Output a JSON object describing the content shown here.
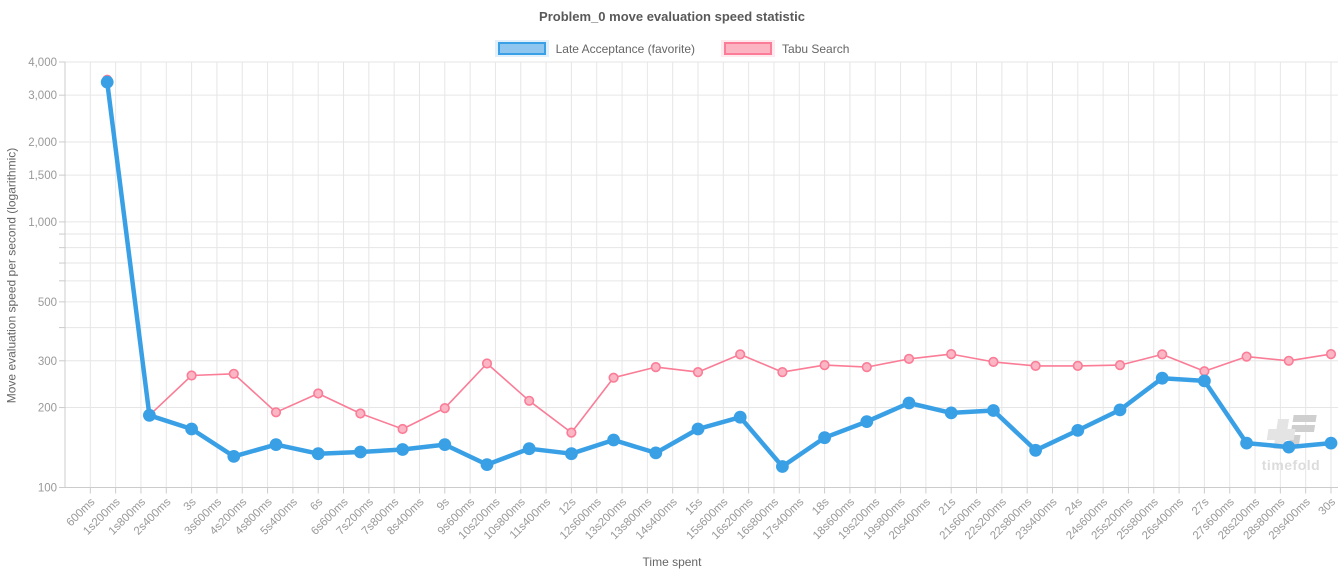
{
  "header": {
    "title": "Problem_0 move evaluation speed statistic"
  },
  "watermark": {
    "text": "timefold",
    "text_color": "#dcdcdc",
    "logo_light": "#e4e4e4",
    "logo_dark": "#cfcfcf"
  },
  "axes_style": {
    "grid_color": "#e6e6e6",
    "axis_color": "#cccccc",
    "tick_label_color": "#999999",
    "axis_title_color": "#666666"
  },
  "chart_data": {
    "type": "line",
    "title": "Problem_0 move evaluation speed statistic",
    "xlabel": "Time spent",
    "ylabel": "Move evaluation speed per second (logarithmic)",
    "y_scale": "log",
    "ylim": [
      100,
      4000
    ],
    "x_range_ms": [
      0,
      30000
    ],
    "x_tick_step_ms": 600,
    "grid": true,
    "legend_position": "top",
    "y_ticks": [
      {
        "v": 4000,
        "label": "4,000"
      },
      {
        "v": 3000,
        "label": "3,000"
      },
      {
        "v": 2000,
        "label": "2,000"
      },
      {
        "v": 1500,
        "label": "1,500"
      },
      {
        "v": 1000,
        "label": "1,000"
      },
      {
        "v": 500,
        "label": "500"
      },
      {
        "v": 300,
        "label": "300"
      },
      {
        "v": 200,
        "label": "200"
      },
      {
        "v": 100,
        "label": "100"
      }
    ],
    "y_minor_gridlines": [
      900,
      800,
      700,
      600,
      400
    ],
    "x_tick_labels": [
      "600ms",
      "1s200ms",
      "1s800ms",
      "2s400ms",
      "3s",
      "3s600ms",
      "4s200ms",
      "4s800ms",
      "5s400ms",
      "6s",
      "6s600ms",
      "7s200ms",
      "7s800ms",
      "8s400ms",
      "9s",
      "9s600ms",
      "10s200ms",
      "10s800ms",
      "11s400ms",
      "12s",
      "12s600ms",
      "13s200ms",
      "13s800ms",
      "14s400ms",
      "15s",
      "15s600ms",
      "16s200ms",
      "16s800ms",
      "17s400ms",
      "18s",
      "18s600ms",
      "19s200ms",
      "19s800ms",
      "20s400ms",
      "21s",
      "21s600ms",
      "22s200ms",
      "22s800ms",
      "23s400ms",
      "24s",
      "24s600ms",
      "25s200ms",
      "25s800ms",
      "26s400ms",
      "27s",
      "27s600ms",
      "28s200ms",
      "28s800ms",
      "29s400ms",
      "30s"
    ],
    "x_ms": [
      1000,
      2000,
      3000,
      4000,
      5000,
      6000,
      7000,
      8000,
      9000,
      10000,
      11000,
      12000,
      13000,
      14000,
      15000,
      16000,
      17000,
      18000,
      19000,
      20000,
      21000,
      22000,
      23000,
      24000,
      25000,
      26000,
      27000,
      28000,
      29000,
      30000
    ],
    "series": [
      {
        "name": "Late Acceptance (favorite)",
        "color": "#3aa0e6",
        "point_fill": "#3aa0e6",
        "line_width": 4.5,
        "point_radius": 5.6,
        "legend_fill": "#8ec6ef",
        "legend_halo": "#e2f0fb",
        "values": [
          3360,
          187,
          166,
          131,
          145,
          134,
          136,
          139,
          145,
          122,
          140,
          134,
          151,
          135,
          166,
          184,
          120,
          154,
          177,
          208,
          191,
          195,
          138,
          164,
          196,
          258,
          252,
          147,
          142,
          147
        ]
      },
      {
        "name": "Tabu Search",
        "color": "#fa7c96",
        "point_fill": "#fbb6c5",
        "line_width": 1.6,
        "point_radius": 4.3,
        "legend_fill": "#fcb3c2",
        "legend_halo": "#fde9ee",
        "values": [
          3430,
          187,
          264,
          268,
          192,
          226,
          190,
          166,
          199,
          293,
          212,
          161,
          259,
          284,
          272,
          317,
          272,
          289,
          284,
          305,
          318,
          297,
          287,
          287,
          289,
          317,
          274,
          311,
          300,
          318
        ]
      }
    ]
  }
}
